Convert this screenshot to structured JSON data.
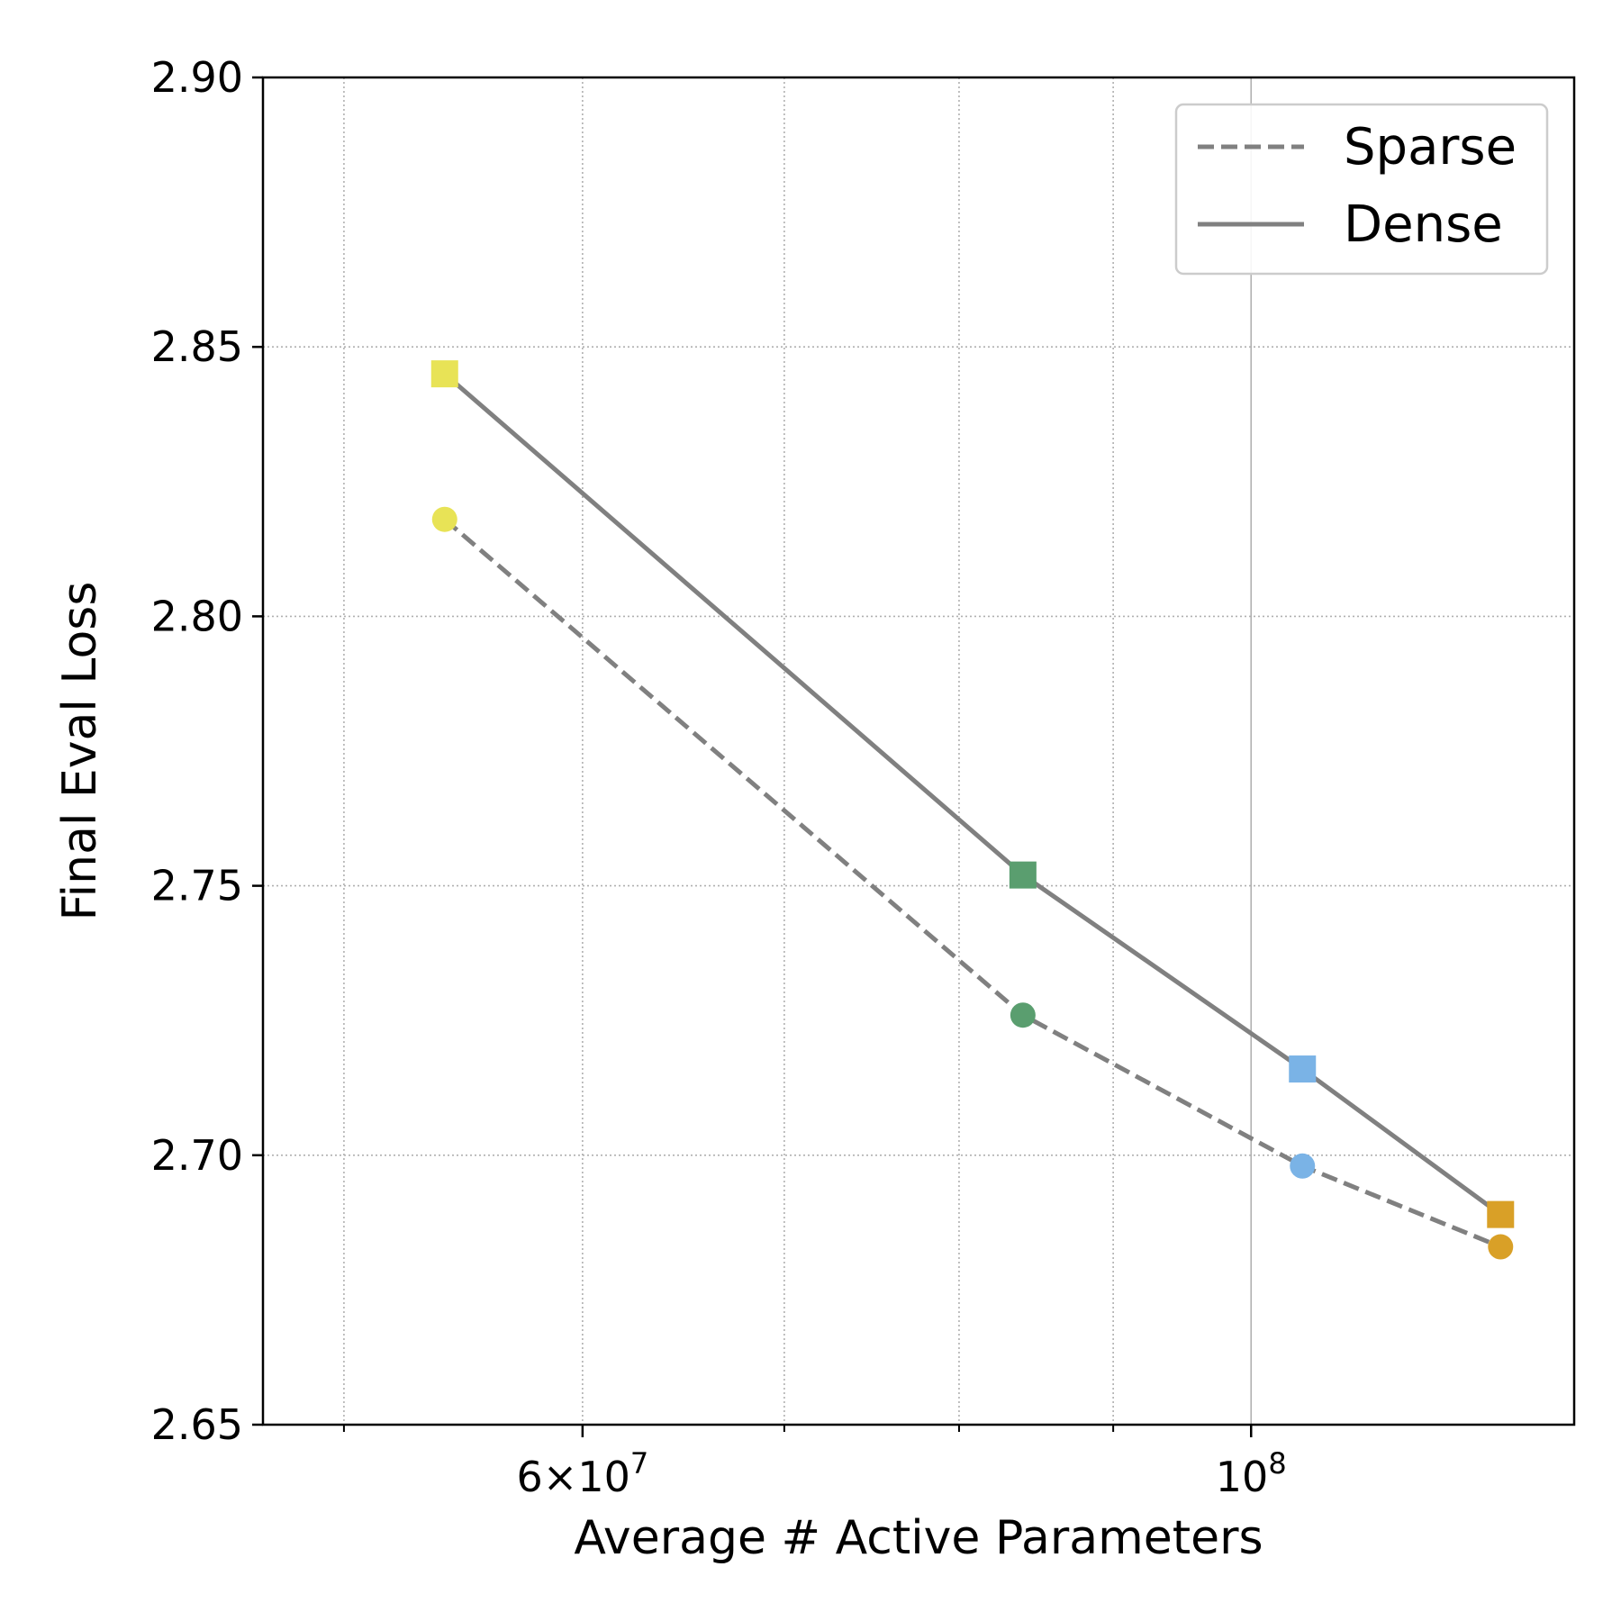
{
  "chart_data": {
    "type": "line",
    "xlabel": "Average # Active Parameters",
    "ylabel": "Final Eval Loss",
    "xscale": "log",
    "xlim": [
      47000000,
      128000000
    ],
    "ylim": [
      2.65,
      2.9
    ],
    "x_major_ticks": [
      {
        "value": 60000000,
        "label": "6×10",
        "exp": "7"
      },
      {
        "value": 100000000,
        "label": "10",
        "exp": "8"
      }
    ],
    "x_minor_ticks": [
      50000000,
      70000000,
      80000000,
      90000000
    ],
    "y_ticks": [
      {
        "value": 2.65,
        "label": "2.65"
      },
      {
        "value": 2.7,
        "label": "2.70"
      },
      {
        "value": 2.75,
        "label": "2.75"
      },
      {
        "value": 2.8,
        "label": "2.80"
      },
      {
        "value": 2.85,
        "label": "2.85"
      },
      {
        "value": 2.9,
        "label": "2.90"
      }
    ],
    "grid": true,
    "legend_position": "top-right",
    "point_colors": [
      "#e8e356",
      "#5a9e6f",
      "#7ab3e6",
      "#d9a027"
    ],
    "line_color": "#808080",
    "series": [
      {
        "name": "Sparse",
        "linestyle": "dashed",
        "marker": "circle",
        "x": [
          54000000,
          84000000,
          104000000,
          121000000
        ],
        "y": [
          2.818,
          2.726,
          2.698,
          2.683
        ]
      },
      {
        "name": "Dense",
        "linestyle": "solid",
        "marker": "square",
        "x": [
          54000000,
          84000000,
          104000000,
          121000000
        ],
        "y": [
          2.845,
          2.752,
          2.716,
          2.689
        ]
      }
    ]
  }
}
